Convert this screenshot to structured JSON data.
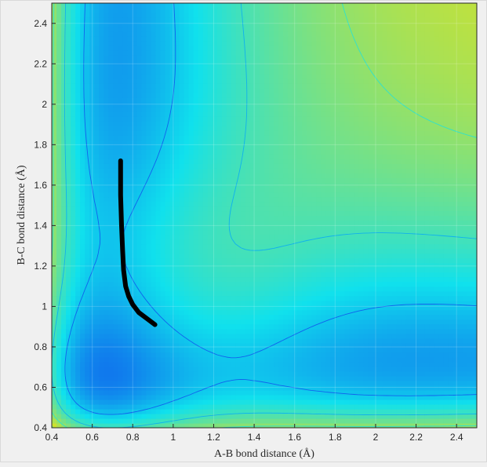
{
  "chart_data": {
    "type": "contour",
    "title": "",
    "xlabel": "A-B bond distance (Å)",
    "ylabel": "B-C bond distance (Å)",
    "xlim": [
      0.4,
      2.5
    ],
    "ylim": [
      0.4,
      2.5
    ],
    "xticks": [
      "0.4",
      "0.6",
      "0.8",
      "1",
      "1.2",
      "1.4",
      "1.6",
      "1.8",
      "2",
      "2.2",
      "2.4"
    ],
    "yticks": [
      "0.4",
      "0.6",
      "0.8",
      "1",
      "1.2",
      "1.4",
      "1.6",
      "1.8",
      "2",
      "2.2",
      "2.4"
    ],
    "grid": true,
    "colormap": "jet",
    "colors": {
      "low": "#0000aa",
      "high": "#aa0000",
      "trajectory": "#000000"
    },
    "trajectory": {
      "x": [
        0.74,
        0.74,
        0.745,
        0.75,
        0.755,
        0.765,
        0.78,
        0.8,
        0.83,
        0.87,
        0.91
      ],
      "y": [
        1.72,
        1.55,
        1.4,
        1.28,
        1.18,
        1.1,
        1.05,
        1.01,
        0.97,
        0.94,
        0.91
      ]
    }
  }
}
